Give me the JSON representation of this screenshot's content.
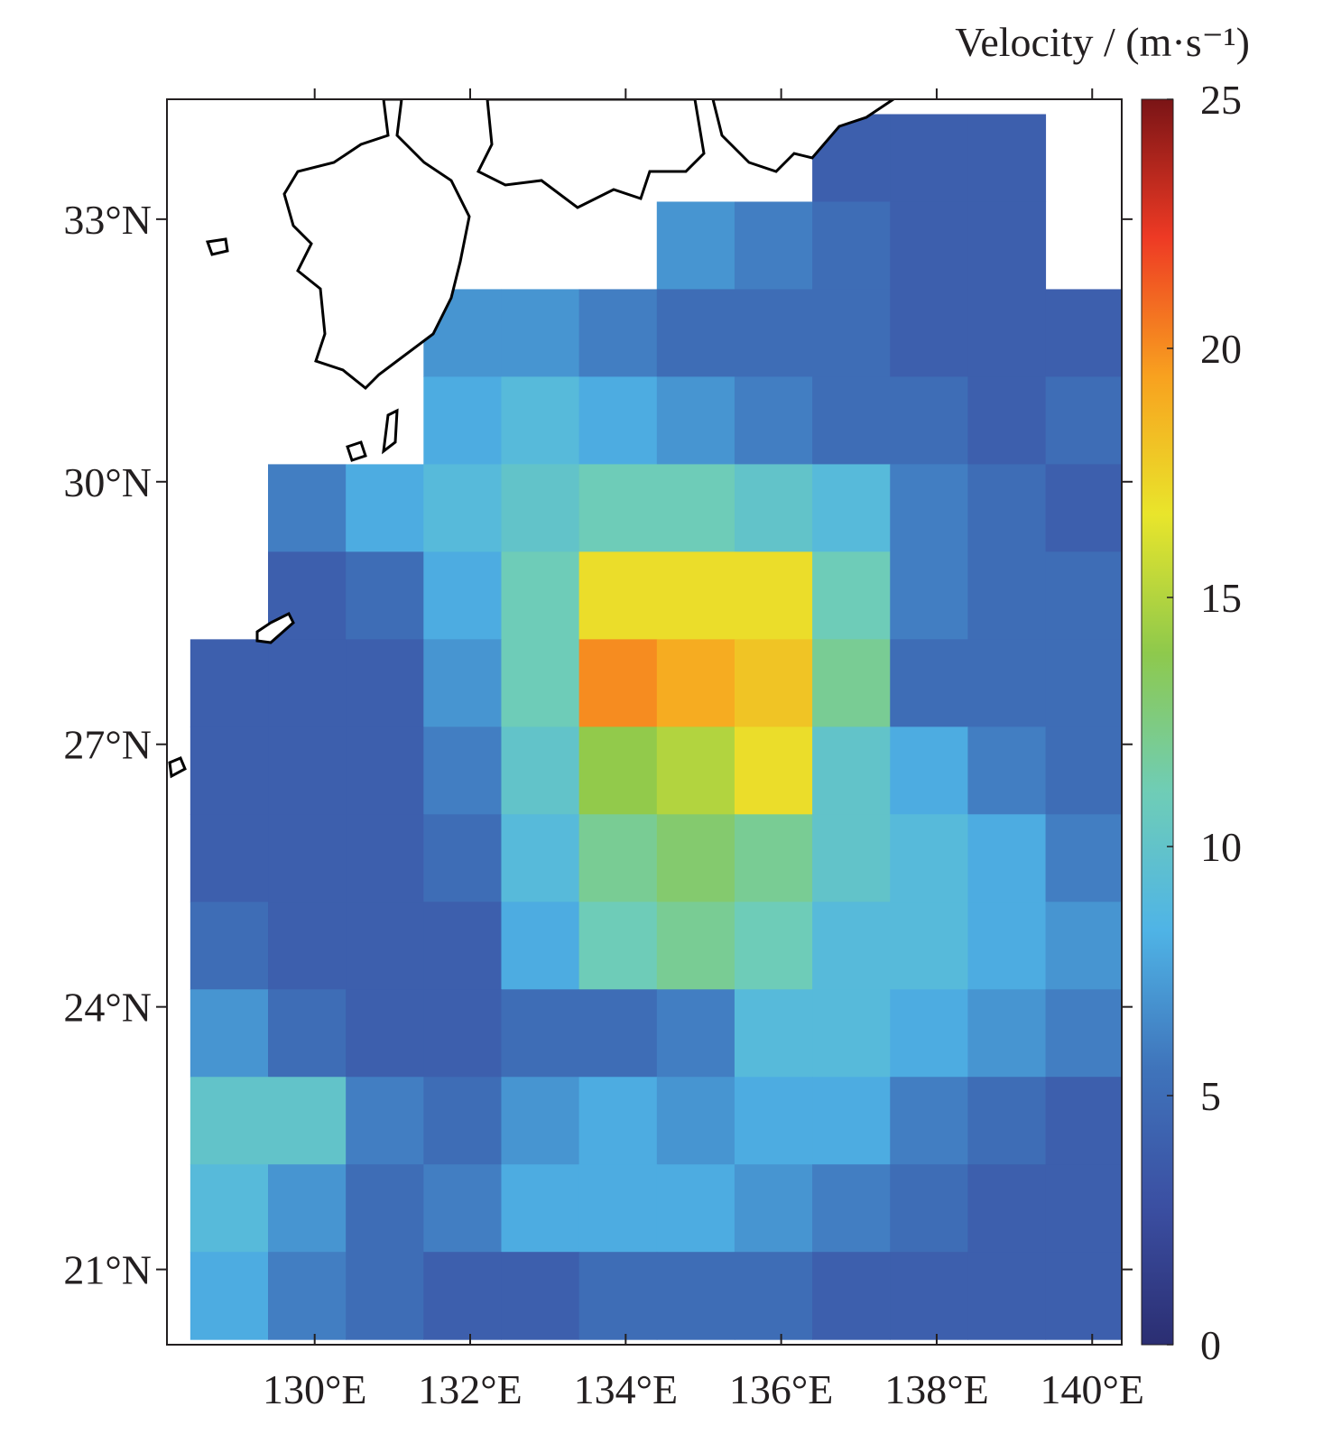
{
  "chart_data": {
    "type": "heatmap",
    "colorbar_label": "Velocity / (m·s⁻¹)",
    "x": [
      128.9,
      129.9,
      130.9,
      131.9,
      132.9,
      133.9,
      134.9,
      135.9,
      136.9,
      137.9,
      138.9,
      139.9
    ],
    "y": [
      33.7,
      32.7,
      31.7,
      30.7,
      29.7,
      28.7,
      27.7,
      26.7,
      25.7,
      24.7,
      23.7,
      22.7,
      21.7,
      20.7
    ],
    "values": [
      [
        null,
        null,
        null,
        null,
        null,
        null,
        null,
        null,
        4,
        4,
        4,
        null
      ],
      [
        null,
        null,
        null,
        null,
        null,
        null,
        7,
        6,
        5,
        4,
        4,
        null
      ],
      [
        null,
        null,
        null,
        7,
        7,
        6,
        5,
        5,
        5,
        4,
        4,
        4
      ],
      [
        null,
        null,
        null,
        8,
        9,
        8,
        7,
        6,
        5,
        5,
        4,
        5
      ],
      [
        null,
        6,
        8,
        9,
        10,
        11,
        11,
        10,
        9,
        6,
        5,
        4
      ],
      [
        null,
        4,
        5,
        8,
        11,
        17,
        17,
        17,
        11,
        6,
        5,
        5
      ],
      [
        4,
        4,
        4,
        7,
        11,
        20,
        19,
        18,
        12,
        5,
        5,
        5
      ],
      [
        4,
        4,
        4,
        6,
        10,
        14,
        15,
        17,
        10,
        8,
        6,
        5
      ],
      [
        4,
        4,
        4,
        5,
        9,
        12,
        13,
        12,
        10,
        9,
        8,
        6
      ],
      [
        5,
        4,
        4,
        4,
        8,
        11,
        12,
        11,
        9,
        9,
        8,
        7
      ],
      [
        7,
        5,
        4,
        4,
        5,
        5,
        6,
        9,
        9,
        8,
        7,
        6
      ],
      [
        10,
        10,
        6,
        5,
        7,
        8,
        7,
        8,
        8,
        6,
        5,
        4
      ],
      [
        9,
        7,
        5,
        6,
        8,
        8,
        8,
        7,
        6,
        5,
        4,
        4
      ],
      [
        8,
        6,
        5,
        4,
        4,
        5,
        5,
        5,
        4,
        4,
        4,
        4
      ]
    ],
    "xlim": [
      128.1,
      140.38
    ],
    "ylim": [
      20.14,
      34.37
    ],
    "xticks": [
      {
        "value": 130,
        "label": "130°E"
      },
      {
        "value": 132,
        "label": "132°E"
      },
      {
        "value": 134,
        "label": "134°E"
      },
      {
        "value": 136,
        "label": "136°E"
      },
      {
        "value": 138,
        "label": "138°E"
      },
      {
        "value": 140,
        "label": "140°E"
      }
    ],
    "yticks": [
      {
        "value": 21,
        "label": "21°N"
      },
      {
        "value": 24,
        "label": "24°N"
      },
      {
        "value": 27,
        "label": "27°N"
      },
      {
        "value": 30,
        "label": "30°N"
      },
      {
        "value": 33,
        "label": "33°N"
      }
    ],
    "clim": [
      0,
      25
    ],
    "cticks": [
      0,
      5,
      10,
      15,
      20,
      25
    ],
    "colors": [
      "#2b2e72",
      "#3b4fa2",
      "#3f74bb",
      "#4fb4e6",
      "#6fcdb6",
      "#8ec94c",
      "#e9e52b",
      "#f8a11f",
      "#ee3a24",
      "#7a1416"
    ]
  }
}
